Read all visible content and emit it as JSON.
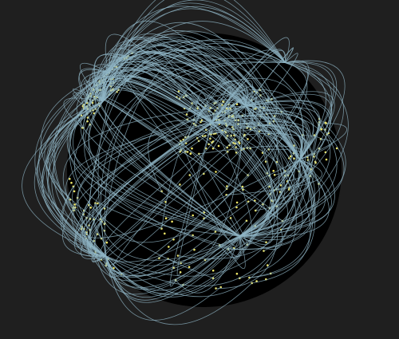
{
  "globe": {
    "background_color": "#1f1f1f",
    "sphere_color": "#000000",
    "node_color": "#f0e868",
    "arc_color": "#8fb4c4",
    "projection": "orthographic",
    "hubs": [
      {
        "id": "hub-europe",
        "lon": 10,
        "lat": 50
      },
      {
        "id": "hub-moscow",
        "lon": 37,
        "lat": 55
      },
      {
        "id": "hub-newyork",
        "lon": -74,
        "lat": 41
      },
      {
        "id": "hub-losangeles",
        "lon": -118,
        "lat": 34
      },
      {
        "id": "hub-dubai",
        "lon": 55,
        "lat": 25
      },
      {
        "id": "hub-africa",
        "lon": 20,
        "lat": 0
      },
      {
        "id": "hub-saopaulo",
        "lon": -46,
        "lat": -23
      },
      {
        "id": "hub-tokyo",
        "lon": 139,
        "lat": 35
      }
    ]
  }
}
